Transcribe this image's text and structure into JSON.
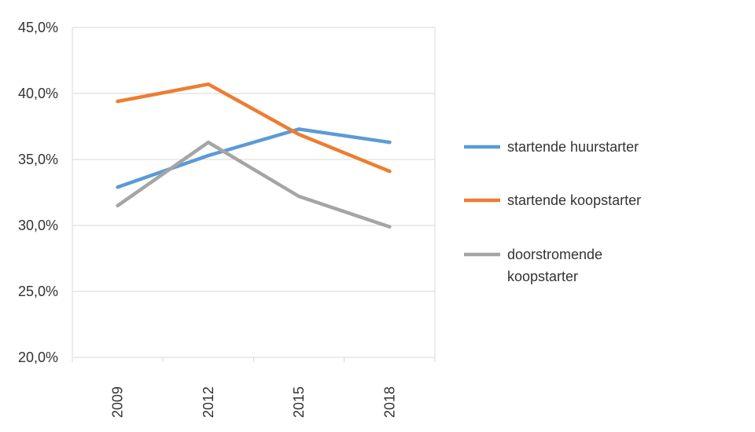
{
  "chart_data": {
    "type": "line",
    "categories": [
      "2009",
      "2012",
      "2015",
      "2018"
    ],
    "ylim": [
      0.2,
      0.45
    ],
    "yticks": [
      0.2,
      0.25,
      0.3,
      0.35,
      0.4,
      0.45
    ],
    "ytick_labels": [
      "20,0%",
      "25,0%",
      "30,0%",
      "35,0%",
      "40,0%",
      "45,0%"
    ],
    "grid": true,
    "legend_position": "right",
    "title": "",
    "xlabel": "",
    "ylabel": "",
    "series": [
      {
        "name": "startende huurstarter",
        "legend_lines": [
          "startende huurstarter"
        ],
        "color": "#5b9bd5",
        "values": [
          0.329,
          0.353,
          0.373,
          0.363
        ]
      },
      {
        "name": "startende koopstarter",
        "legend_lines": [
          "startende koopstarter"
        ],
        "color": "#ed7d31",
        "values": [
          0.394,
          0.407,
          0.369,
          0.341
        ]
      },
      {
        "name": "doorstromende koopstarter",
        "legend_lines": [
          "doorstromende",
          "koopstarter"
        ],
        "color": "#a5a5a5",
        "values": [
          0.315,
          0.363,
          0.322,
          0.299
        ]
      }
    ]
  }
}
